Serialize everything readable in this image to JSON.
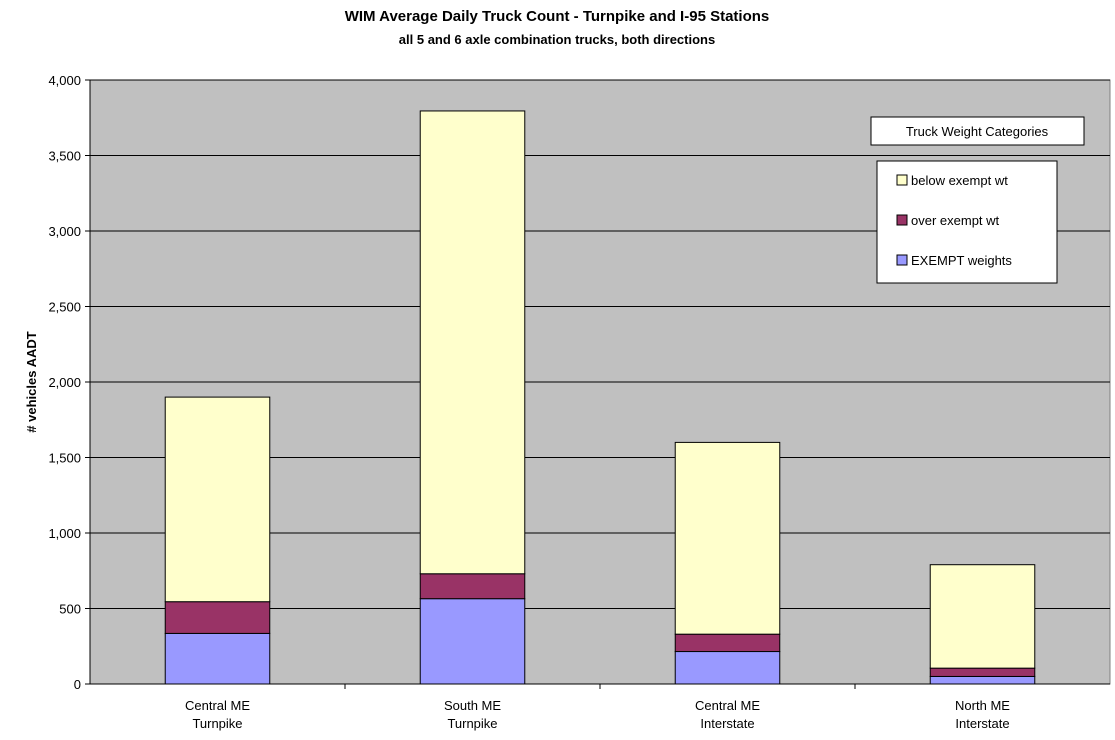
{
  "chart_data": {
    "type": "bar",
    "stacked": true,
    "title": "WIM Average Daily Truck Count - Turnpike and I-95 Stations",
    "subtitle": "all 5 and 6 axle combination trucks, both directions",
    "xlabel": "",
    "ylabel": "# vehicles AADT",
    "ylim": [
      0,
      4000
    ],
    "yticks": [
      "0",
      "500",
      "1,000",
      "1,500",
      "2,000",
      "2,500",
      "3,000",
      "3,500",
      "4,000"
    ],
    "categories": [
      [
        "Central ME",
        "Turnpike"
      ],
      [
        "South ME",
        "Turnpike"
      ],
      [
        "Central ME",
        "Interstate"
      ],
      [
        "North ME",
        "Interstate"
      ]
    ],
    "series": [
      {
        "name": "EXEMPT weights",
        "color": "#9999ff",
        "values": [
          335,
          565,
          215,
          50
        ]
      },
      {
        "name": "over exempt wt",
        "color": "#993366",
        "values": [
          210,
          165,
          115,
          55
        ]
      },
      {
        "name": "below exempt wt",
        "color": "#ffffcc",
        "values": [
          1355,
          3065,
          1270,
          685
        ]
      }
    ],
    "plot_background": "#c0c0c0",
    "grid": true,
    "legend_title": "Truck Weight Categories",
    "legend_position": "top-right"
  }
}
